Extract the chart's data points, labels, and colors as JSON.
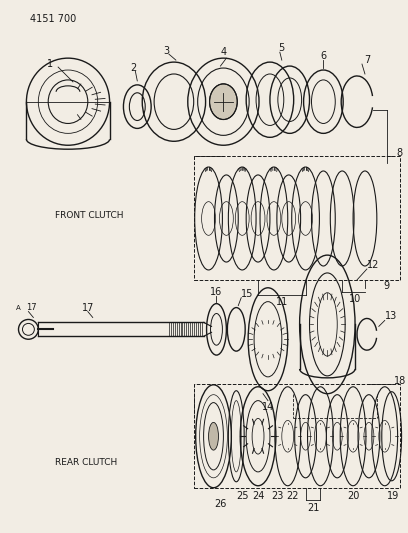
{
  "title_code": "4151 700",
  "front_clutch_label": "FRONT CLUTCH",
  "rear_clutch_label": "REAR CLUTCH",
  "bg_color": "#f2ede4",
  "line_color": "#1a1a1a",
  "fig_w": 4.08,
  "fig_h": 5.33,
  "dpi": 100
}
